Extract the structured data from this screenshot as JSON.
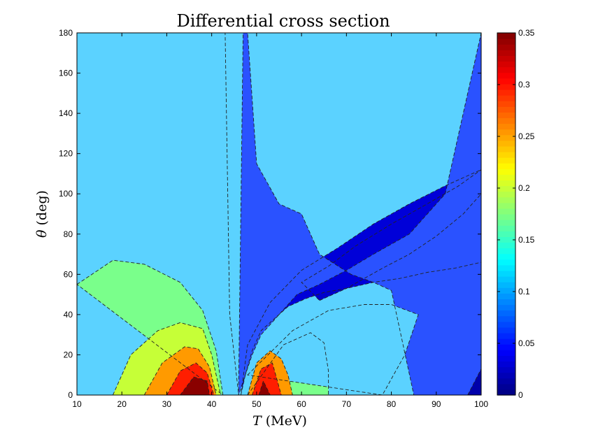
{
  "chart_data": {
    "type": "heatmap",
    "title": "Differential cross section",
    "xlabel_sym": "T",
    "xlabel_unit": "(MeV)",
    "ylabel_sym": "θ",
    "ylabel_unit": "(deg)",
    "xlim": [
      10,
      100
    ],
    "ylim": [
      0,
      180
    ],
    "xticks": [
      10,
      20,
      30,
      40,
      50,
      60,
      70,
      80,
      90,
      100
    ],
    "yticks": [
      0,
      20,
      40,
      60,
      80,
      100,
      120,
      140,
      160,
      180
    ],
    "colorbar": {
      "colormap": "jet",
      "range": [
        0,
        0.35
      ],
      "ticks": [
        "0",
        "0.05",
        "0.1",
        "0.15",
        "0.2",
        "0.25",
        "0.3",
        "0.35"
      ]
    },
    "contour_regions": [
      {
        "level": 0.005,
        "color": "#0000cc",
        "T": [
          64,
          70,
          78,
          84,
          90,
          96,
          100,
          100,
          95,
          88,
          80,
          72,
          66,
          60
        ],
        "theta": [
          47,
          53,
          63,
          70,
          79,
          90,
          100,
          112,
          104,
          95,
          85,
          74,
          64,
          56
        ]
      },
      {
        "level": 0.02,
        "color": "#0000d8",
        "T": [
          46.5,
          47.5,
          49,
          51,
          54,
          57,
          61,
          65,
          70,
          76,
          82,
          88,
          94,
          100,
          100,
          92,
          84,
          76,
          68,
          60,
          53,
          48
        ],
        "theta": [
          0,
          10,
          22,
          32,
          38,
          44,
          48,
          51,
          53,
          56,
          58,
          61,
          63,
          66,
          112,
          104,
          95,
          85,
          73,
          62,
          46,
          25
        ]
      },
      {
        "level": 0.05,
        "color": "#2a52ff",
        "T": [
          46,
          47,
          48,
          50,
          55,
          60,
          64,
          71,
          76,
          80,
          85,
          100,
          100,
          92,
          84,
          76,
          70,
          64,
          59,
          55,
          51,
          49,
          47.5,
          46
        ],
        "theta": [
          5,
          180,
          180,
          115,
          95,
          90,
          70,
          60,
          56,
          52,
          0,
          0,
          180,
          100,
          80,
          70,
          62,
          55,
          50,
          40,
          30,
          20,
          10,
          0
        ]
      },
      {
        "level": 0.1,
        "color": "#5bd2ff",
        "T": [
          10,
          10,
          43,
          44,
          45,
          46
        ],
        "theta": [
          0,
          180,
          180,
          40,
          20,
          0
        ]
      },
      {
        "level": 0.14,
        "color": "#7aff8b",
        "T": [
          10,
          18,
          25,
          33,
          38,
          41,
          42.5
        ],
        "theta": [
          55,
          67,
          65,
          56,
          42,
          22,
          0
        ]
      },
      {
        "level": 0.14,
        "color": "#7aff8b",
        "T": [
          48,
          56,
          62,
          65,
          66,
          66
        ],
        "theta": [
          0,
          25,
          31,
          26,
          12,
          0
        ]
      },
      {
        "level": 0.1,
        "color": "#5bd2ff",
        "T": [
          48,
          58,
          66,
          74,
          80,
          86,
          83,
          78
        ],
        "theta": [
          10,
          32,
          42,
          45,
          45,
          40,
          20,
          0
        ]
      },
      {
        "level": 0.2,
        "color": "#c6ff37",
        "T": [
          18,
          22,
          28,
          33,
          38,
          40,
          42
        ],
        "theta": [
          0,
          20,
          32,
          36,
          33,
          20,
          0
        ]
      },
      {
        "level": 0.25,
        "color": "#ff9a00",
        "T": [
          25,
          29,
          34,
          37,
          39.5,
          41
        ],
        "theta": [
          0,
          16,
          24,
          23,
          14,
          0
        ]
      },
      {
        "level": 0.25,
        "color": "#ff9a00",
        "T": [
          48,
          50,
          53,
          55.5,
          57,
          58
        ],
        "theta": [
          0,
          16,
          22,
          18,
          10,
          0
        ]
      },
      {
        "level": 0.3,
        "color": "#ff1e00",
        "T": [
          30,
          33,
          36.5,
          39,
          40.5
        ],
        "theta": [
          0,
          12,
          16,
          11,
          0
        ]
      },
      {
        "level": 0.3,
        "color": "#ff1e00",
        "T": [
          49,
          51,
          53.5,
          55.5
        ],
        "theta": [
          0,
          13,
          16,
          0
        ]
      },
      {
        "level": 0.34,
        "color": "#8a0000",
        "T": [
          33,
          36,
          39,
          39.5
        ],
        "theta": [
          0,
          9,
          7,
          0
        ]
      },
      {
        "level": 0.34,
        "color": "#8a0000",
        "T": [
          50.5,
          51.5,
          53
        ],
        "theta": [
          0,
          7,
          0
        ]
      },
      {
        "level": 0.0,
        "color": "#0000aa",
        "T": [
          97,
          100,
          100
        ],
        "theta": [
          0,
          13,
          0
        ]
      }
    ]
  }
}
